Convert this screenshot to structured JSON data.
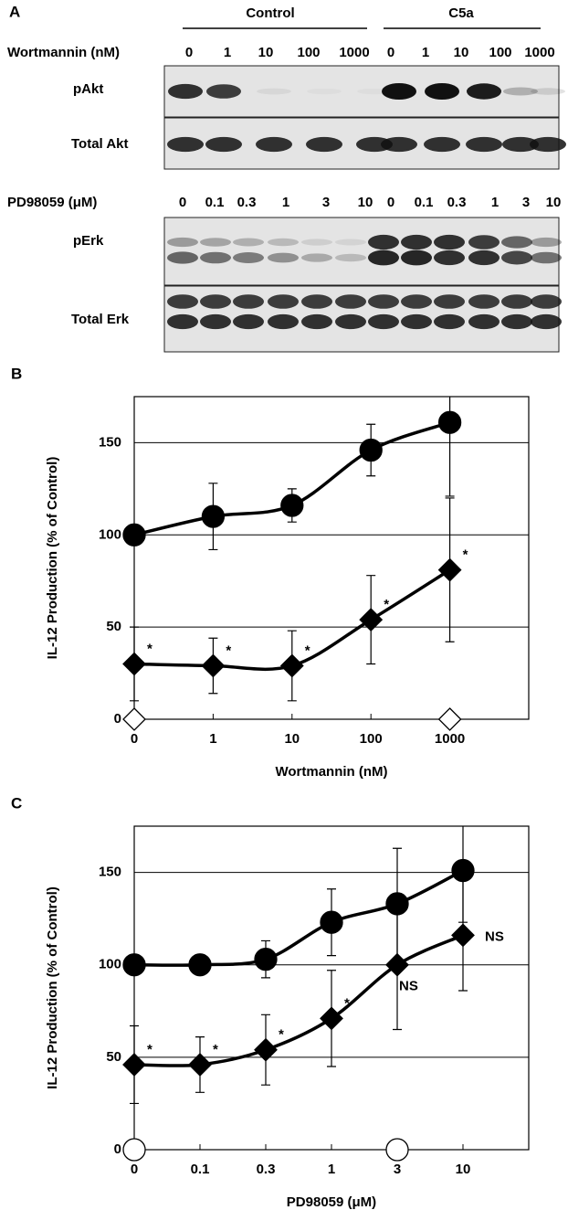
{
  "panel_a": {
    "label": "A",
    "groups": [
      "Control",
      "C5a"
    ],
    "wortmannin": {
      "label": "Wortmannin (nM)",
      "lanes": [
        "0",
        "1",
        "10",
        "100",
        "1000",
        "0",
        "1",
        "10",
        "100",
        "1000"
      ]
    },
    "akt_blots": [
      "pAkt",
      "Total Akt"
    ],
    "pd98059": {
      "label": "PD98059 (μM)",
      "lanes": [
        "0",
        "0.1",
        "0.3",
        "1",
        "3",
        "10",
        "0",
        "0.1",
        "0.3",
        "1",
        "3",
        "10"
      ]
    },
    "erk_blots": [
      "pErk",
      "Total Erk"
    ]
  },
  "chart_data": [
    {
      "type": "line",
      "panel_label": "B",
      "categories": [
        "0",
        "1",
        "10",
        "100",
        "1000"
      ],
      "x_label": "Wortmannin (nM)",
      "y_label": "IL-12 Production (% of Control)",
      "ylim": [
        0,
        175
      ],
      "yticks": [
        0,
        50,
        100,
        150
      ],
      "grid": true,
      "series": [
        {
          "marker": "circle",
          "color": "#000000",
          "values": [
            100,
            110,
            116,
            146,
            161
          ],
          "errors": [
            0,
            18,
            9,
            14,
            40
          ]
        },
        {
          "marker": "diamond",
          "color": "#000000",
          "values": [
            30,
            29,
            29,
            54,
            81
          ],
          "errors": [
            20,
            15,
            19,
            24,
            39
          ],
          "point_labels": [
            "*",
            "*",
            "*",
            "*",
            "*"
          ]
        },
        {
          "marker": "open-diamond",
          "color": "#000000",
          "values": [
            0,
            null,
            null,
            null,
            0
          ],
          "line": false
        }
      ]
    },
    {
      "type": "line",
      "panel_label": "C",
      "categories": [
        "0",
        "0.1",
        "0.3",
        "1",
        "3",
        "10"
      ],
      "x_label": "PD98059 (μM)",
      "y_label": "IL-12 Production (% of Control)",
      "ylim": [
        0,
        175
      ],
      "yticks": [
        0,
        50,
        100,
        150
      ],
      "grid": true,
      "series": [
        {
          "marker": "circle",
          "color": "#000000",
          "values": [
            100,
            100,
            103,
            123,
            133,
            151
          ],
          "errors": [
            0,
            5,
            10,
            18,
            30,
            28
          ]
        },
        {
          "marker": "diamond",
          "color": "#000000",
          "values": [
            46,
            46,
            54,
            71,
            100,
            116
          ],
          "errors": [
            21,
            15,
            19,
            26,
            35,
            30
          ],
          "point_labels": [
            "*",
            "*",
            "*",
            "*",
            "NS",
            "NS"
          ]
        },
        {
          "marker": "open-circle",
          "color": "#000000",
          "values": [
            0,
            null,
            null,
            null,
            0,
            null
          ],
          "line": false
        }
      ]
    }
  ]
}
